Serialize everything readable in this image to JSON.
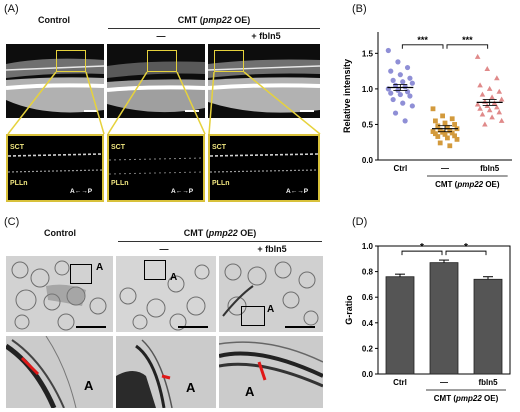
{
  "panels": {
    "A": {
      "letter": "(A)",
      "header_control": "Control",
      "header_cmt": "CMT (",
      "header_cmt_gene": "pmp22",
      "header_cmt_suffix": " OE)",
      "header_minus": "—",
      "header_plus": "+ fbln5",
      "labels": {
        "sct": "SCT",
        "plln": "PLLn",
        "ap": "A←→P"
      }
    },
    "B": {
      "letter": "(B)",
      "ylabel": "Relative intensity",
      "sig": [
        "***",
        "***"
      ],
      "xlabels": [
        "Ctrl",
        "—",
        "fbln5"
      ],
      "group_label_prefix": "CMT (",
      "group_label_gene": "pmp22",
      "group_label_suffix": " OE)"
    },
    "C": {
      "letter": "(C)",
      "header_control": "Control",
      "header_cmt": "CMT (",
      "header_cmt_gene": "pmp22",
      "header_cmt_suffix": " OE)",
      "header_minus": "—",
      "header_plus": "+ fbln5",
      "axon_label": "A"
    },
    "D": {
      "letter": "(D)",
      "ylabel": "G-ratio",
      "sig": [
        "*",
        "*"
      ],
      "xlabels": [
        "Ctrl",
        "—",
        "fbln5"
      ],
      "group_label_prefix": "CMT (",
      "group_label_gene": "pmp22",
      "group_label_suffix": " OE)"
    }
  },
  "chart_data": [
    {
      "type": "scatter",
      "ylabel": "Relative intensity",
      "categories": [
        "Ctrl",
        "—",
        "fbln5"
      ],
      "ylim": [
        0,
        1.8
      ],
      "yticks": [
        0.0,
        0.5,
        1.0,
        1.5
      ],
      "means": [
        1.02,
        0.44,
        0.81
      ],
      "colors": [
        "#8f8fd6",
        "#d39a3c",
        "#e08a8a"
      ],
      "markers": [
        "circle",
        "square",
        "triangle"
      ],
      "points": [
        [
          1.54,
          1.38,
          1.3,
          1.25,
          1.2,
          1.15,
          1.12,
          1.1,
          1.08,
          1.05,
          1.03,
          1.0,
          0.98,
          0.96,
          0.94,
          0.92,
          0.9,
          0.85,
          0.8,
          0.76,
          0.66,
          0.55
        ],
        [
          0.72,
          0.62,
          0.58,
          0.55,
          0.52,
          0.5,
          0.48,
          0.46,
          0.44,
          0.42,
          0.41,
          0.4,
          0.39,
          0.38,
          0.37,
          0.36,
          0.34,
          0.33,
          0.31,
          0.29,
          0.24,
          0.2
        ],
        [
          1.45,
          1.28,
          1.15,
          1.05,
          1.0,
          0.96,
          0.92,
          0.88,
          0.85,
          0.82,
          0.8,
          0.78,
          0.76,
          0.74,
          0.72,
          0.7,
          0.67,
          0.64,
          0.6,
          0.55,
          0.5
        ]
      ]
    },
    {
      "type": "bar",
      "ylabel": "G-ratio",
      "categories": [
        "Ctrl",
        "—",
        "fbln5"
      ],
      "values": [
        0.76,
        0.87,
        0.74
      ],
      "errors": [
        0.02,
        0.02,
        0.02
      ],
      "ylim": [
        0,
        1.0
      ],
      "yticks": [
        0.0,
        0.2,
        0.4,
        0.6,
        0.8,
        1.0
      ],
      "bar_color": "#555555"
    }
  ]
}
